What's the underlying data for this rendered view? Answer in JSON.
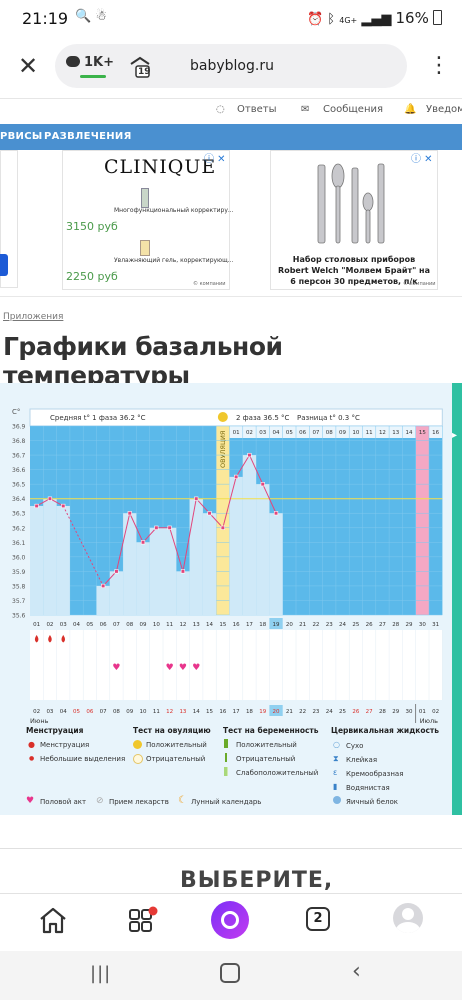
{
  "status_bar": {
    "time": "21:19",
    "left_icons": "🔍 ☃",
    "network": "4G+",
    "battery": "16%"
  },
  "browser": {
    "comments_count": "1K+",
    "tabs_count": "19",
    "url": "babyblog.ru"
  },
  "site_header": {
    "answers": "Ответы",
    "messages": "Сообщения",
    "notifications": "Уведомл"
  },
  "nav": {
    "services": "РВИСЫ",
    "entertainment": "РАЗВЛЕЧЕНИЯ"
  },
  "ads": {
    "brand": "CLINIQUE",
    "item1_text": "Многофункциональный корректиру...",
    "item1_price": "3150 руб",
    "item2_text": "Увлажняющий гель, корректирующ...",
    "item2_price": "2250 руб",
    "item3_title": "Набор столовых приборов Robert Welch \"Молвем Брайт\" на 6 персон 30 предметов, п/к",
    "ad_label": "© компании"
  },
  "breadcrumb": "Приложения",
  "page_title": "Графики базальной температуры",
  "chart_data": {
    "type": "line",
    "unit_label": "C°",
    "phase1_label": "Средняя t° 1 фаза 36.2 °C",
    "phase2_label": "2 фаза 36.5 °C",
    "diff_label": "Разница t° 0.3 °C",
    "ovulation_label": "ОВУЛЯЦИЯ",
    "ylim": [
      35.6,
      36.9
    ],
    "y_ticks": [
      "36.9",
      "36.8",
      "36.7",
      "36.6",
      "36.5",
      "36.4",
      "36.3",
      "36.2",
      "36.1",
      "36.0",
      "35.9",
      "35.8",
      "35.7",
      "35.6"
    ],
    "cycle_days": [
      "01",
      "02",
      "03",
      "04",
      "05",
      "06",
      "07",
      "08",
      "09",
      "10",
      "11",
      "12",
      "13",
      "14",
      "15",
      "16",
      "17",
      "18",
      "19",
      "20",
      "21",
      "22",
      "23",
      "24",
      "25",
      "26",
      "27",
      "28",
      "29",
      "30",
      "31"
    ],
    "top_day_labels": [
      "01",
      "02",
      "03",
      "04",
      "05",
      "06",
      "07",
      "08",
      "09",
      "10",
      "11",
      "12",
      "13",
      "14",
      "15",
      "16"
    ],
    "dates": [
      "02",
      "03",
      "04",
      "05",
      "06",
      "07",
      "08",
      "09",
      "10",
      "11",
      "12",
      "13",
      "14",
      "15",
      "16",
      "17",
      "18",
      "19",
      "20",
      "21",
      "22",
      "23",
      "24",
      "25",
      "26",
      "27",
      "28",
      "29",
      "30",
      "01",
      "02"
    ],
    "month_start": "Июнь",
    "month_end": "Июль",
    "coverline": 36.4,
    "ovulation_day": 15,
    "today_day": 19,
    "temperatures": [
      36.35,
      36.4,
      36.35,
      null,
      null,
      35.8,
      35.9,
      36.3,
      36.1,
      36.2,
      36.2,
      35.9,
      36.4,
      36.3,
      36.2,
      36.55,
      36.7,
      36.5,
      36.3
    ],
    "menstruation_days": [
      1,
      2,
      3
    ],
    "intercourse_days": [
      7,
      11,
      12,
      13
    ],
    "weekend_date_indices": [
      3,
      4,
      10,
      11,
      17,
      18,
      24,
      25
    ]
  },
  "legend": {
    "menstruation_title": "Менструация",
    "menstruation": "Менструация",
    "spotting": "Небольшие выделения",
    "ovulation_test_title": "Тест на овуляцию",
    "positive": "Положительный",
    "negative": "Отрицательный",
    "pregnancy_test_title": "Тест на беременность",
    "preg_positive": "Положительный",
    "preg_negative": "Отрицательный",
    "preg_weak": "Слабоположительный",
    "cervical_title": "Цервикальная жидкость",
    "dry": "Сухо",
    "sticky": "Клейкая",
    "creamy": "Кремообразная",
    "watery": "Водянистая",
    "egg_white": "Яичный белок",
    "intercourse": "Половой акт",
    "medication": "Прием лекарств",
    "lunar": "Лунный календарь"
  },
  "choose_text": "ВЫБЕРИТЕ,",
  "bottom_nav": {
    "tabs_count": "2"
  }
}
